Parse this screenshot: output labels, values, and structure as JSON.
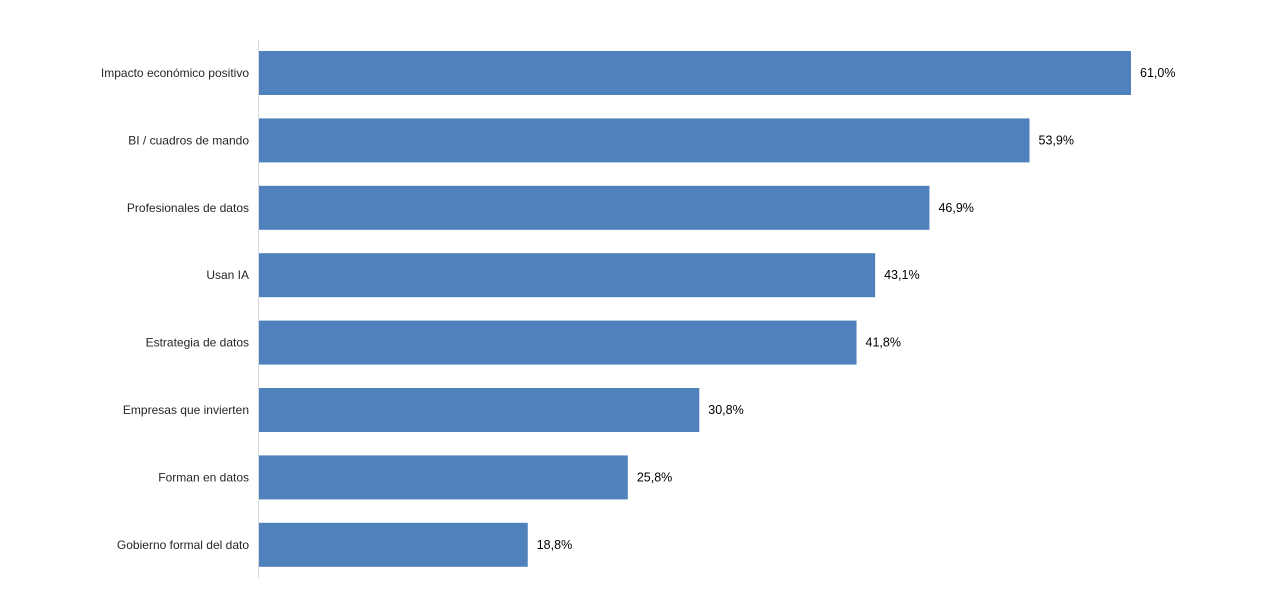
{
  "chart_data": {
    "type": "bar",
    "orientation": "horizontal",
    "categories": [
      "Impacto económico positivo",
      "BI / cuadros de mando",
      "Profesionales de datos",
      "Usan IA",
      "Estrategia de datos",
      "Empresas que invierten",
      "Forman en datos",
      "Gobierno formal del dato"
    ],
    "values": [
      61.0,
      53.9,
      46.9,
      43.1,
      41.8,
      30.8,
      25.8,
      18.8
    ],
    "value_labels": [
      "61,0%",
      "53,9%",
      "46,9%",
      "43,1%",
      "41,8%",
      "30,8%",
      "25,8%",
      "18,8%"
    ],
    "xlim": [
      0,
      61.0
    ],
    "title": "",
    "xlabel": "",
    "ylabel": "",
    "grid": false,
    "legend": "none",
    "bar_color": "#4f81bd"
  }
}
